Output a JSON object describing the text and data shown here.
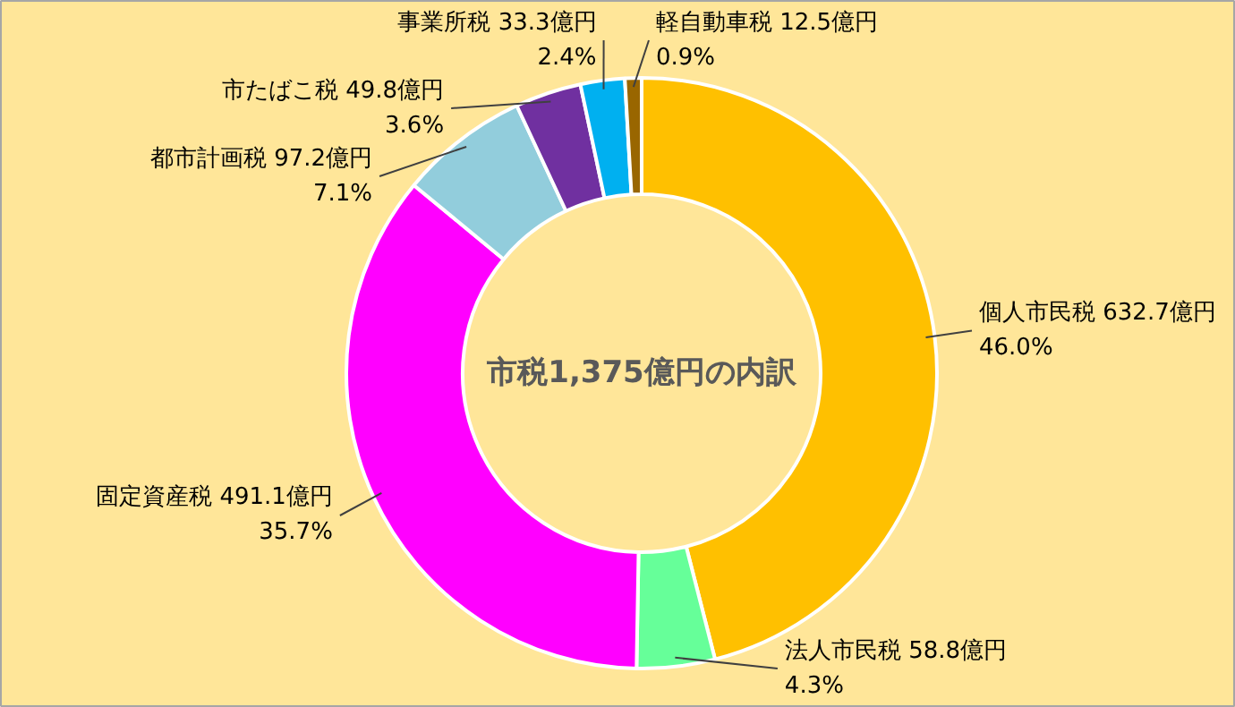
{
  "chart_data": {
    "type": "donut",
    "title": "市税1,375億円の内訳",
    "categories": [
      "個人市民税",
      "法人市民税",
      "固定資産税",
      "都市計画税",
      "市たばこ税",
      "事業所税",
      "軽自動車税"
    ],
    "values": [
      632.7,
      58.8,
      491.1,
      97.2,
      49.8,
      33.3,
      12.5
    ],
    "colors": [
      "#ffc000",
      "#66ff99",
      "#ff00ff",
      "#92cddc",
      "#7030a0",
      "#00b0f0",
      "#996600"
    ],
    "value_labels": [
      "632.7億円\n46.0%",
      "58.8億円\n4.3%",
      "491.1億円\n35.7%",
      "97.2億円\n7.1%",
      "49.8億円\n3.6%",
      "33.3億円\n2.4%",
      "12.5億円\n0.9%"
    ]
  }
}
